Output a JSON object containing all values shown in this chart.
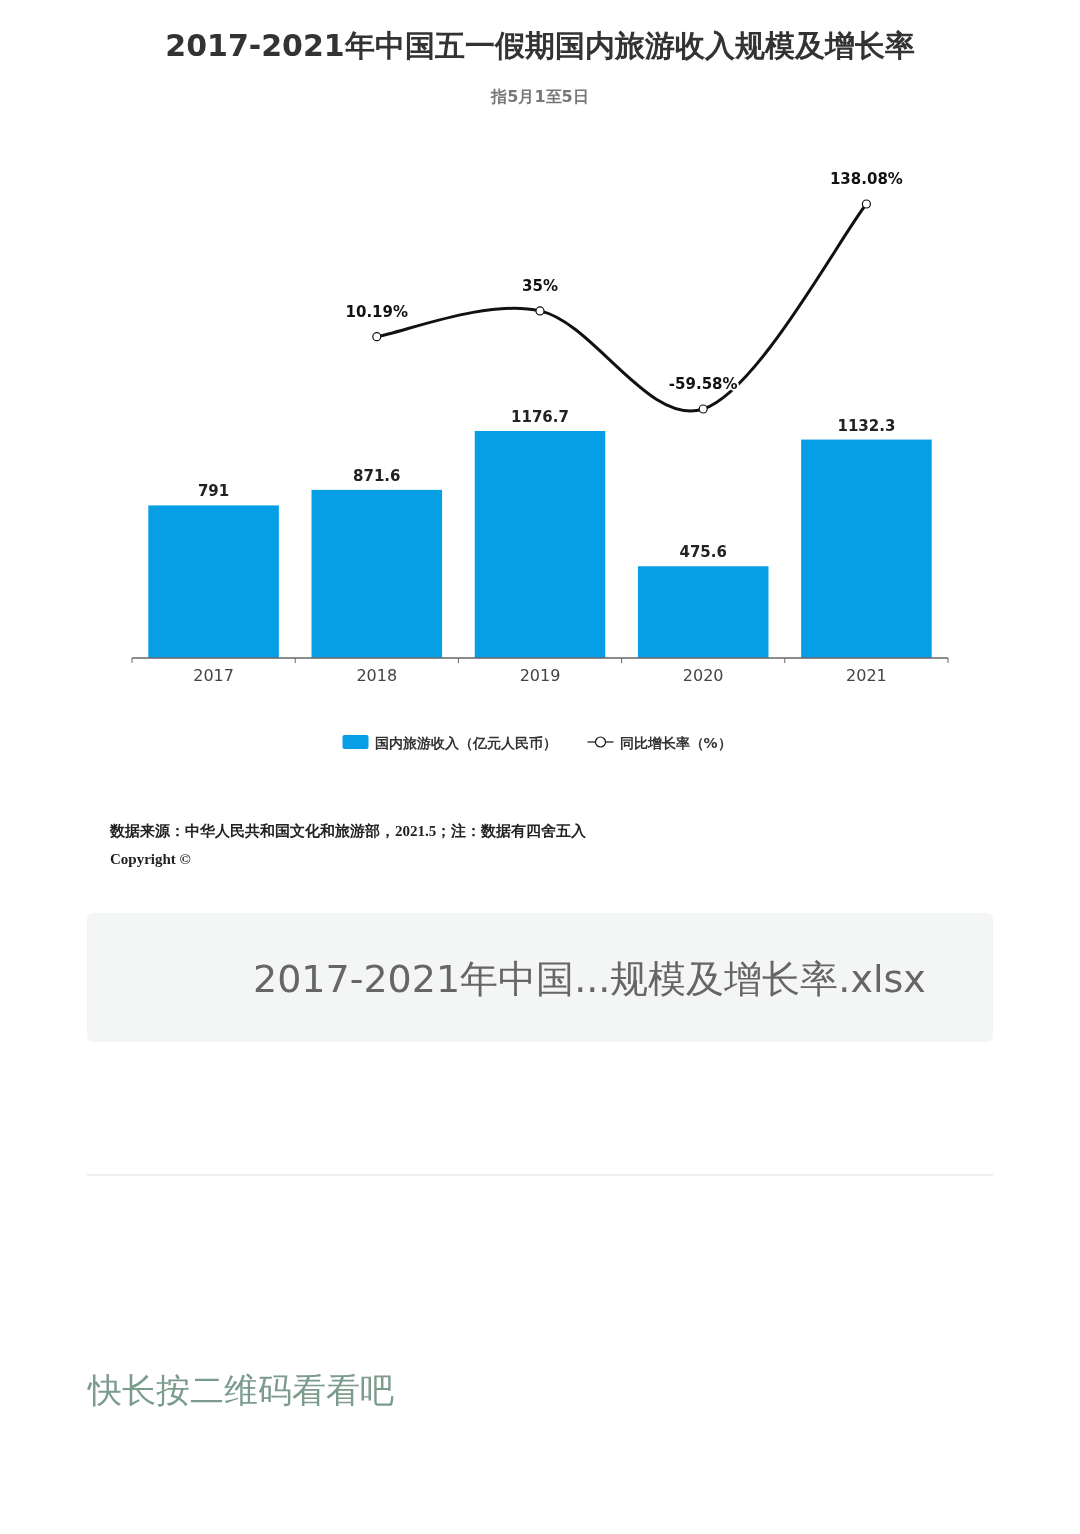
{
  "chart_data": [
    {
      "type": "bar",
      "categories": [
        "2017",
        "2018",
        "2019",
        "2020",
        "2021"
      ],
      "series": [
        {
          "name": "国内旅游收入（亿元人民币）",
          "color": "#069fe6",
          "values": [
            791,
            871.6,
            1176.7,
            475.6,
            1132.3
          ]
        }
      ],
      "data_labels": true,
      "legend": "bottom",
      "annotations": [
        "数据来源：中华人民共和国文化和旅游部，2021.5；注：数据有四舍五入",
        "Copyright ©",
        "2017-2021年中国...规模及增长率.xlsx",
        "快长按二维码看看吧"
      ]
    },
    {
      "type": "line",
      "title": "2017-2021年中国五一假期国内旅游收入规模及增长率",
      "subtitle": "指5月1至5日",
      "categories": [
        null,
        null,
        null,
        null,
        null
      ],
      "series": [
        {
          "name": "同比增长率（%）",
          "color": "#111111",
          "values": [
            null,
            10.19,
            35,
            -59.58,
            138.08
          ],
          "value_labels": [
            null,
            "10.19%",
            "35%",
            "-59.58%",
            "138.08%"
          ]
        }
      ],
      "marker": "circle",
      "data_labels": true,
      "legend": "bottom"
    }
  ]
}
